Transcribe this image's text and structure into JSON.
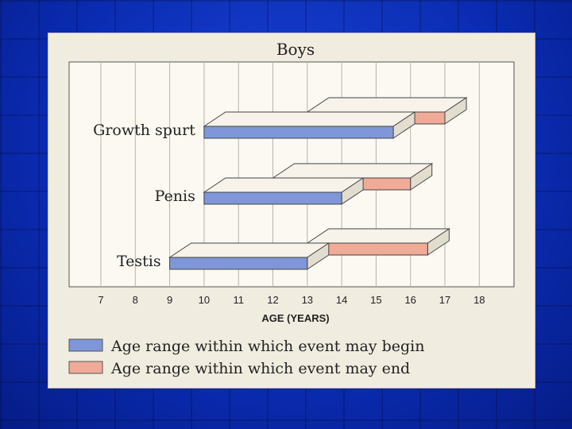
{
  "chart_data": {
    "type": "bar",
    "title": "Boys",
    "xlabel": "AGE (YEARS)",
    "x_ticks": [
      7,
      8,
      9,
      10,
      11,
      12,
      13,
      14,
      15,
      16,
      17,
      18
    ],
    "xlim": [
      7,
      18
    ],
    "categories": [
      "Growth spurt",
      "Penis",
      "Testis"
    ],
    "series": [
      {
        "name": "Age range within which event may begin",
        "color": "#7f97d8",
        "ranges": [
          [
            10,
            15.5
          ],
          [
            10,
            14
          ],
          [
            9,
            13
          ]
        ]
      },
      {
        "name": "Age range within which event may end",
        "color": "#efaa98",
        "ranges": [
          [
            13,
            17
          ],
          [
            12,
            16
          ],
          [
            13,
            16.5
          ]
        ]
      }
    ],
    "grid": "vertical",
    "legend_position": "bottom-left"
  },
  "colors": {
    "background": "#0a2db8",
    "card": "#f1ece0",
    "plot": "#fbf9f2",
    "begin": "#7f97d8",
    "end": "#efaa98"
  }
}
